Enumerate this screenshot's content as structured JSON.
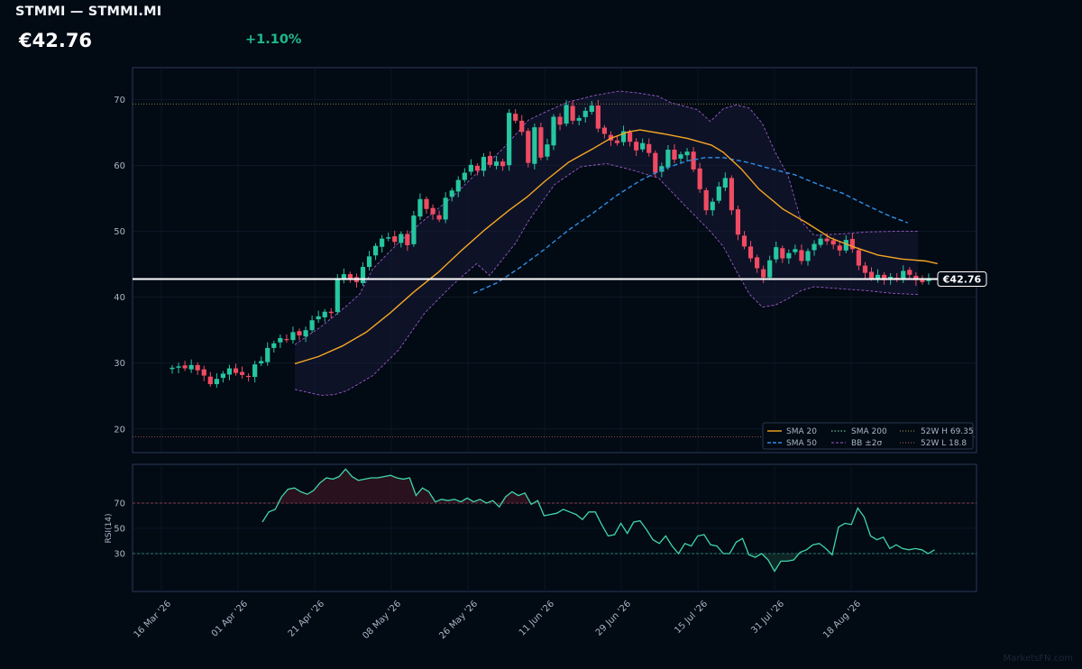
{
  "header": {
    "title": "STMMI — STMMI.MI",
    "price": "€42.76",
    "change": "+1.10%"
  },
  "watermark": "MarketsFN.com",
  "colors": {
    "background": "#020a14",
    "up": "#26c6a0",
    "down": "#ef4b62",
    "sma20": "#f5a623",
    "sma50": "#2f8fe8",
    "sma200": "#5fbf9a",
    "bollinger": "#9b59c8",
    "rsi": "#3ed6a8",
    "high52": "#a6a04a",
    "low52": "#b2664a",
    "last_price": "#ffffff"
  },
  "chart_data": [
    {
      "type": "candlestick",
      "x_ticks": [
        "16 Mar '26",
        "01 Apr '26",
        "21 Apr '26",
        "08 May '26",
        "26 May '26",
        "11 Jun '26",
        "29 Jun '26",
        "15 Jul '26",
        "31 Jul '26",
        "18 Aug '26"
      ],
      "y_ticks": [
        20,
        30,
        40,
        50,
        60,
        70
      ],
      "ylim": [
        17.5,
        75
      ],
      "last_price": 42.76,
      "last_price_label": "€42.76",
      "high_52w": 69.35,
      "low_52w": 18.8,
      "legend": [
        "SMA 20",
        "SMA 50",
        "SMA 200",
        "BB ±2σ",
        "52W H 69.35",
        "52W L 18.8"
      ],
      "legend_position": "bottom-right",
      "closes": [
        29.3,
        29.5,
        29.2,
        29.7,
        28.9,
        28.1,
        26.8,
        27.6,
        28.4,
        29.2,
        28.5,
        28.2,
        27.9,
        29.8,
        30.3,
        32.3,
        33.0,
        33.8,
        33.5,
        34.7,
        34.2,
        35.0,
        36.5,
        37.1,
        37.8,
        37.6,
        42.8,
        43.5,
        42.9,
        42.3,
        44.6,
        46.2,
        47.8,
        48.9,
        49.1,
        48.4,
        49.6,
        47.9,
        52.4,
        54.9,
        53.4,
        52.6,
        51.8,
        55.1,
        56.2,
        57.8,
        58.9,
        60.1,
        59.2,
        61.3,
        60.1,
        60.6,
        59.9,
        68.0,
        66.8,
        65.1,
        60.4,
        65.8,
        61.2,
        63.2,
        67.4,
        66.2,
        69.2,
        66.8,
        67.2,
        68.3,
        69.1,
        65.6,
        64.8,
        63.8,
        63.4,
        65.2,
        63.6,
        62.3,
        63.4,
        61.9,
        58.9,
        59.9,
        62.4,
        60.9,
        61.7,
        62.1,
        59.4,
        56.4,
        53.2,
        54.5,
        56.8,
        58.1,
        53.2,
        49.5,
        47.7,
        45.9,
        44.4,
        43.0,
        45.6,
        47.6,
        45.9,
        46.7,
        47.3,
        45.5,
        47.0,
        48.1,
        48.9,
        48.5,
        48.0,
        47.1,
        48.7,
        47.3,
        44.8,
        43.7,
        42.9,
        43.4,
        42.6,
        43.1,
        42.7,
        44.0,
        43.4,
        42.6,
        42.3,
        42.76
      ],
      "sma20_points": [
        [
          0,
          29.9
        ],
        [
          4,
          31.0
        ],
        [
          8,
          32.6
        ],
        [
          12,
          34.7
        ],
        [
          16,
          37.6
        ],
        [
          20,
          40.8
        ],
        [
          24,
          43.7
        ],
        [
          28,
          47.1
        ],
        [
          32,
          50.3
        ],
        [
          36,
          53.2
        ],
        [
          39,
          55.2
        ],
        [
          42,
          57.6
        ],
        [
          46,
          60.5
        ],
        [
          50,
          62.5
        ],
        [
          53,
          64.1
        ],
        [
          56,
          65.1
        ],
        [
          58,
          65.4
        ],
        [
          62,
          64.8
        ],
        [
          66,
          64.1
        ],
        [
          70,
          63.1
        ],
        [
          72,
          62.0
        ],
        [
          75,
          59.5
        ],
        [
          78,
          56.4
        ],
        [
          82,
          53.4
        ],
        [
          86,
          51.3
        ],
        [
          90,
          49.0
        ],
        [
          94,
          47.6
        ],
        [
          98,
          46.4
        ],
        [
          102,
          45.8
        ],
        [
          106,
          45.5
        ],
        [
          108,
          45.1
        ]
      ],
      "sma50_points": [
        [
          30,
          40.6
        ],
        [
          34,
          42.2
        ],
        [
          38,
          44.6
        ],
        [
          42,
          47.3
        ],
        [
          46,
          50.2
        ],
        [
          50,
          52.7
        ],
        [
          54,
          55.4
        ],
        [
          58,
          57.7
        ],
        [
          62,
          59.5
        ],
        [
          66,
          60.7
        ],
        [
          69,
          61.2
        ],
        [
          72,
          61.2
        ],
        [
          76,
          60.5
        ],
        [
          80,
          59.5
        ],
        [
          84,
          58.6
        ],
        [
          88,
          57.1
        ],
        [
          92,
          55.8
        ],
        [
          96,
          54.0
        ],
        [
          100,
          52.3
        ],
        [
          103,
          51.3
        ]
      ],
      "bb_upper_points": [
        [
          0,
          32.8
        ],
        [
          4,
          35.5
        ],
        [
          8,
          38.7
        ],
        [
          10,
          40.5
        ],
        [
          12,
          44.3
        ],
        [
          16,
          48.3
        ],
        [
          20,
          51.8
        ],
        [
          24,
          55.0
        ],
        [
          28,
          58.8
        ],
        [
          32,
          62.5
        ],
        [
          36,
          66.9
        ],
        [
          39,
          68.3
        ],
        [
          42,
          69.6
        ],
        [
          46,
          70.6
        ],
        [
          50,
          71.3
        ],
        [
          53,
          71.0
        ],
        [
          56,
          70.5
        ],
        [
          58,
          69.5
        ],
        [
          62,
          68.5
        ],
        [
          64,
          66.7
        ],
        [
          66,
          68.6
        ],
        [
          68,
          69.2
        ],
        [
          70,
          68.7
        ],
        [
          72,
          66.4
        ],
        [
          74,
          62.0
        ],
        [
          76,
          58.4
        ],
        [
          78,
          51.5
        ],
        [
          80,
          49.4
        ],
        [
          84,
          49.6
        ],
        [
          88,
          49.9
        ],
        [
          92,
          50.0
        ],
        [
          96,
          50.0
        ]
      ],
      "bb_lower_points": [
        [
          0,
          26.0
        ],
        [
          4,
          25.1
        ],
        [
          6,
          25.2
        ],
        [
          8,
          25.8
        ],
        [
          12,
          28.1
        ],
        [
          16,
          32.0
        ],
        [
          20,
          37.6
        ],
        [
          24,
          41.6
        ],
        [
          28,
          45.1
        ],
        [
          30,
          43.3
        ],
        [
          34,
          48.2
        ],
        [
          36,
          51.6
        ],
        [
          40,
          57.1
        ],
        [
          44,
          59.8
        ],
        [
          48,
          60.3
        ],
        [
          52,
          59.3
        ],
        [
          56,
          58.1
        ],
        [
          60,
          54.0
        ],
        [
          64,
          50.0
        ],
        [
          66,
          47.7
        ],
        [
          68,
          44.0
        ],
        [
          70,
          40.5
        ],
        [
          72,
          38.5
        ],
        [
          74,
          38.8
        ],
        [
          76,
          39.8
        ],
        [
          78,
          41.0
        ],
        [
          80,
          41.6
        ],
        [
          84,
          41.3
        ],
        [
          88,
          41.0
        ],
        [
          92,
          40.6
        ],
        [
          96,
          40.4
        ]
      ]
    },
    {
      "type": "line",
      "ylabel": "RSI(14)",
      "y_ticks": [
        30,
        50,
        70
      ],
      "ylim": [
        0,
        100
      ],
      "overbought": 70,
      "oversold": 30,
      "rsi_values": [
        55,
        63,
        65,
        75,
        81,
        82,
        79,
        77,
        80,
        86,
        90,
        89,
        91,
        97,
        91,
        88,
        89,
        90,
        90,
        91,
        92,
        90,
        89,
        90,
        76,
        82,
        79,
        71,
        73,
        72,
        73,
        71,
        74,
        71,
        73,
        70,
        72,
        67,
        75,
        79,
        76,
        78,
        69,
        72,
        60,
        61,
        62,
        65,
        63,
        61,
        57,
        63,
        63,
        53,
        44,
        45,
        54,
        46,
        55,
        56,
        49,
        41,
        38,
        44,
        36,
        30,
        38,
        36,
        44,
        45,
        37,
        36,
        30,
        30,
        39,
        42,
        29,
        27,
        30,
        25,
        16,
        24,
        24,
        25,
        31,
        33,
        37,
        38,
        34,
        29,
        51,
        54,
        53,
        66,
        59,
        44,
        41,
        43,
        34,
        37,
        34,
        33,
        34,
        33,
        30,
        33
      ]
    }
  ]
}
